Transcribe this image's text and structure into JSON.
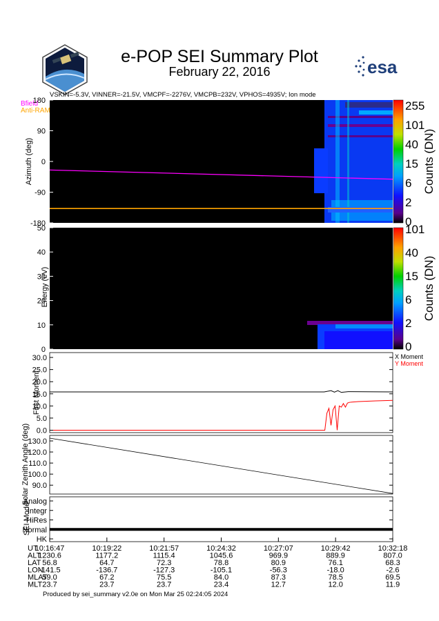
{
  "header": {
    "title": "e-POP SEI Summary Plot",
    "subtitle": "February 22, 2016",
    "params": "VSKIN=-5.3V, VINNER=-21.5V, VMCPF=-2276V, VMCPB=232V, VPHOS=4935V; Ion mode",
    "legend_bfield": "Bfield",
    "legend_antiram": "Anti-RAM",
    "logo_text": "esa"
  },
  "colors": {
    "bfield": "#ff00ff",
    "antiram": "#ffa500",
    "x_moment": "#000000",
    "y_moment": "#ff0000",
    "esa_blue": "#1f3f7a"
  },
  "footer": "Produced by sei_summary v2.0e on Mon Mar 25 02:24:05 2024",
  "chart_data": [
    {
      "type": "heatmap",
      "ylabel": "Azimuth (deg)",
      "yticks": [
        "180",
        "90",
        "0",
        "-90",
        "-180"
      ],
      "ylim": [
        -180,
        180
      ],
      "colorbar_label": "Counts (DN)",
      "colorbar_ticks": [
        "255",
        "101",
        "40",
        "15",
        "6",
        "2",
        "0"
      ],
      "series": [
        {
          "name": "Bfield",
          "x_frac": [
            0,
            1
          ],
          "values": [
            -25,
            -52
          ]
        },
        {
          "name": "Anti-RAM",
          "x_frac": [
            0,
            1
          ],
          "values": [
            -138,
            -138
          ]
        }
      ]
    },
    {
      "type": "heatmap",
      "ylabel": "Energy (eV)",
      "yticks": [
        "50",
        "40",
        "30",
        "20",
        "10",
        "0"
      ],
      "ylim": [
        0,
        50
      ],
      "colorbar_label": "Counts (DN)",
      "colorbar_ticks": [
        "101",
        "40",
        "15",
        "6",
        "2",
        "0"
      ]
    },
    {
      "type": "line",
      "ylabel": "First Moment",
      "yticks": [
        "30.0",
        "25.0",
        "20.0",
        "15.0",
        "10.0",
        "5.0",
        "0.0"
      ],
      "ylim": [
        -1,
        32
      ],
      "series": [
        {
          "name": "X Moment",
          "x": [
            0,
            0.8,
            0.82,
            0.83,
            0.84,
            0.85,
            0.87,
            1
          ],
          "values": [
            15.8,
            15.8,
            16.3,
            15.7,
            16.3,
            15.6,
            15.9,
            15.8
          ]
        },
        {
          "name": "Y Moment",
          "x": [
            0,
            0.802,
            0.808,
            0.814,
            0.82,
            0.826,
            0.832,
            0.838,
            0.844,
            0.85,
            0.856,
            0.862,
            0.868,
            0.874,
            0.9,
            0.95,
            1
          ],
          "values": [
            0,
            0,
            7,
            9,
            2,
            8.5,
            10,
            0,
            10,
            9.5,
            11,
            9.5,
            11.2,
            11.5,
            11.8,
            12.1,
            12.3
          ]
        }
      ]
    },
    {
      "type": "line",
      "ylabel": "Solar Zenith Angle (deg)",
      "yticks": [
        "130.0",
        "120.0",
        "110.0",
        "100.0",
        "90.0"
      ],
      "ylim": [
        82,
        135
      ],
      "series": [
        {
          "x": [
            0,
            1
          ],
          "values": [
            132.5,
            82.5
          ]
        }
      ]
    },
    {
      "type": "line",
      "ylabel": "SEI Mode",
      "categories": [
        "Analog",
        "Integr",
        "HiRes",
        "Normal",
        "HK"
      ],
      "series": [
        {
          "x": [
            0,
            1
          ],
          "values": [
            "Normal",
            "Normal"
          ]
        }
      ]
    }
  ],
  "time_table": {
    "rows": [
      {
        "label": "UT",
        "values": [
          "10:16:47",
          "10:19:22",
          "10:21:57",
          "10:24:32",
          "10:27:07",
          "10:29:42",
          "10:32:18"
        ]
      },
      {
        "label": "ALT",
        "values": [
          "1230.6",
          "1177.2",
          "1115.4",
          "1045.6",
          "969.9",
          "889.9",
          "807.0"
        ]
      },
      {
        "label": "LAT",
        "values": [
          "56.8",
          "64.7",
          "72.3",
          "78.8",
          "80.9",
          "76.1",
          "68.3"
        ]
      },
      {
        "label": "LON",
        "values": [
          "-141.5",
          "-136.7",
          "-127.3",
          "-105.1",
          "-56.3",
          "-18.0",
          "-2.6"
        ]
      },
      {
        "label": "MLAT",
        "values": [
          "59.0",
          "67.2",
          "75.5",
          "84.0",
          "87.3",
          "78.5",
          "69.5"
        ]
      },
      {
        "label": "MLT",
        "values": [
          "23.7",
          "23.7",
          "23.7",
          "23.4",
          "12.7",
          "12.0",
          "11.9"
        ]
      }
    ]
  }
}
